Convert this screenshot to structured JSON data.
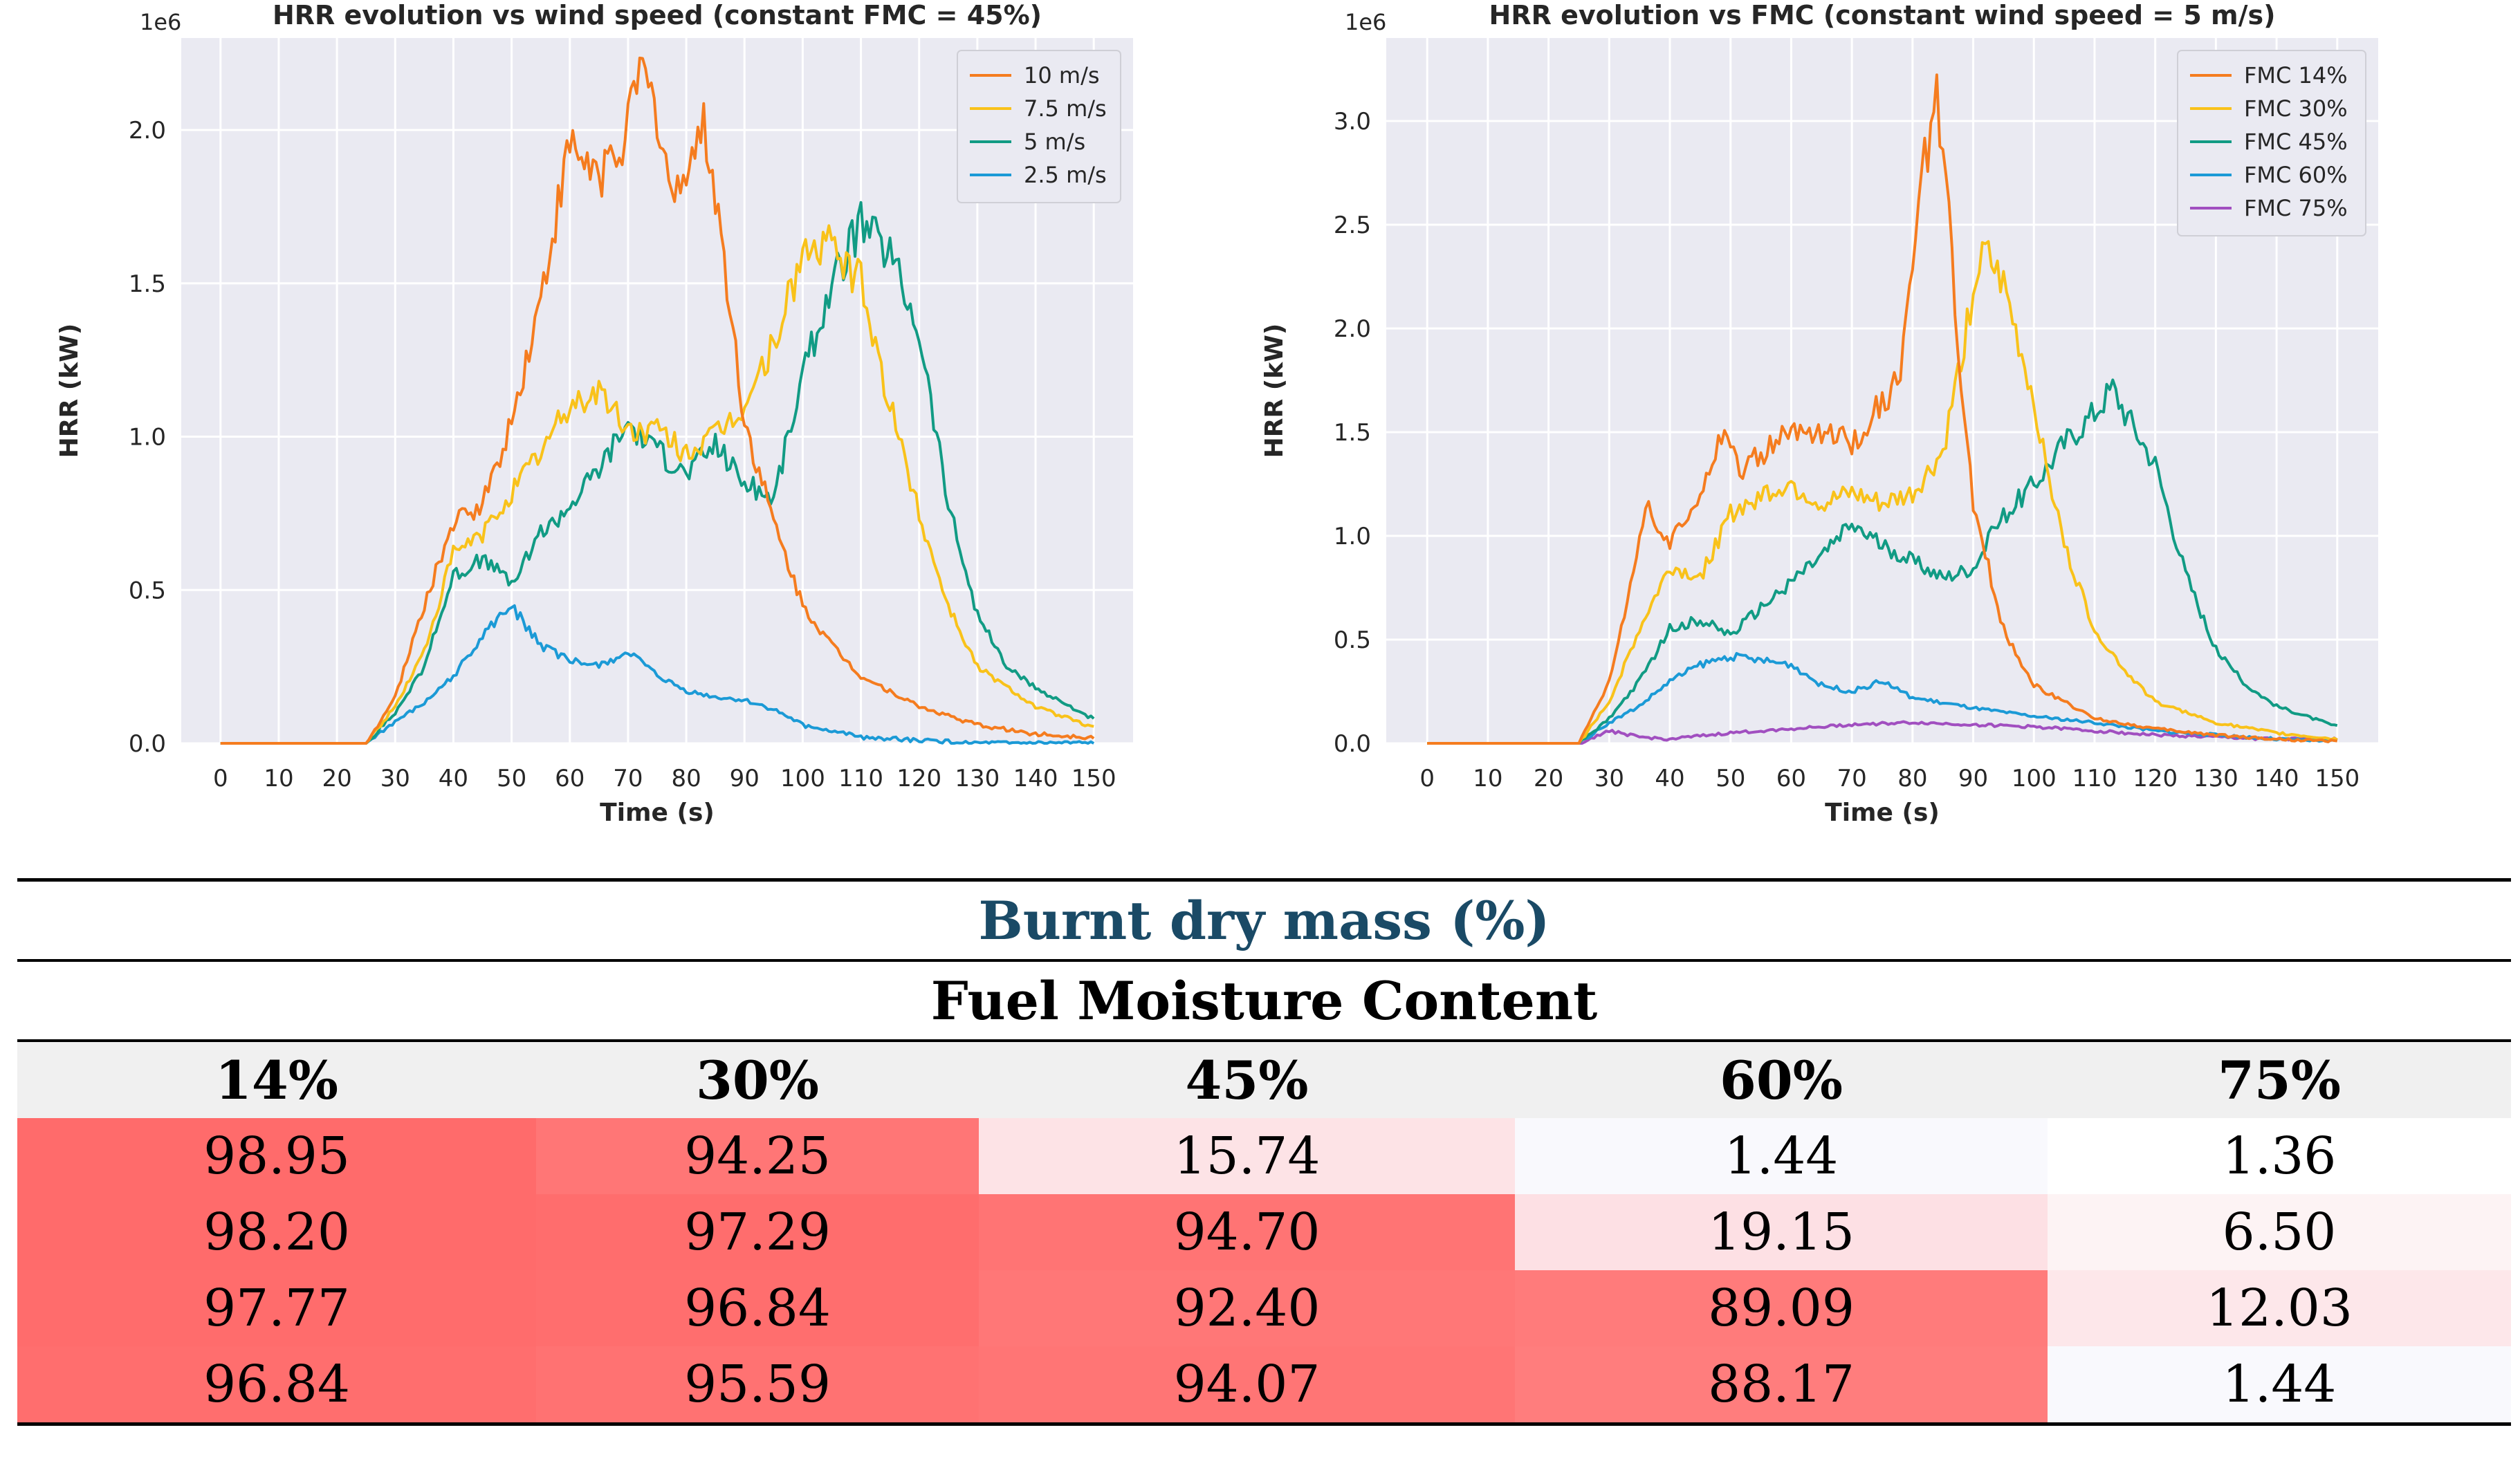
{
  "chart_data": [
    {
      "type": "line",
      "title": "HRR evolution vs wind speed (constant FMC = 45%)",
      "xlabel": "Time (s)",
      "ylabel": "HRR (kW)",
      "y_multiplier_label": "1e6",
      "xlim": [
        0,
        150
      ],
      "ylim": [
        0,
        2.3
      ],
      "xticks": [
        0,
        10,
        20,
        30,
        40,
        50,
        60,
        70,
        80,
        90,
        100,
        110,
        120,
        130,
        140,
        150
      ],
      "yticks": [
        0.0,
        0.5,
        1.0,
        1.5,
        2.0
      ],
      "ytick_labels": [
        "0.0",
        "0.5",
        "1.0",
        "1.5",
        "2.0"
      ],
      "legend_position": "top-right",
      "series": [
        {
          "name": "10 m/s",
          "color": "#f57c1f",
          "x": [
            0,
            25,
            30,
            35,
            40,
            45,
            50,
            55,
            58,
            60,
            65,
            70,
            72,
            75,
            78,
            80,
            83,
            85,
            88,
            90,
            95,
            100,
            105,
            110,
            120,
            130,
            140,
            150
          ],
          "values": [
            0,
            0,
            0.15,
            0.45,
            0.72,
            0.78,
            1.05,
            1.45,
            1.75,
            1.95,
            1.85,
            2.0,
            2.2,
            2.05,
            1.75,
            1.9,
            2.0,
            1.8,
            1.35,
            1.05,
            0.72,
            0.45,
            0.32,
            0.22,
            0.12,
            0.06,
            0.03,
            0.02
          ]
        },
        {
          "name": "7.5 m/s",
          "color": "#f9c21a",
          "x": [
            0,
            25,
            30,
            35,
            40,
            45,
            50,
            55,
            60,
            65,
            70,
            75,
            80,
            85,
            90,
            95,
            100,
            105,
            110,
            115,
            120,
            125,
            130,
            140,
            150
          ],
          "values": [
            0,
            0,
            0.12,
            0.3,
            0.62,
            0.68,
            0.82,
            0.95,
            1.1,
            1.15,
            1.02,
            1.02,
            0.95,
            1.0,
            1.1,
            1.3,
            1.6,
            1.62,
            1.5,
            1.1,
            0.75,
            0.45,
            0.25,
            0.12,
            0.05
          ]
        },
        {
          "name": "5 m/s",
          "color": "#119b84",
          "x": [
            0,
            25,
            30,
            35,
            40,
            45,
            50,
            55,
            60,
            65,
            70,
            75,
            80,
            85,
            90,
            95,
            100,
            105,
            110,
            115,
            120,
            125,
            130,
            135,
            140,
            150
          ],
          "values": [
            0,
            0,
            0.1,
            0.25,
            0.55,
            0.6,
            0.52,
            0.68,
            0.78,
            0.9,
            1.05,
            0.95,
            0.88,
            0.98,
            0.85,
            0.8,
            1.2,
            1.5,
            1.7,
            1.6,
            1.35,
            0.78,
            0.42,
            0.25,
            0.18,
            0.08
          ]
        },
        {
          "name": "2.5 m/s",
          "color": "#1b9ad6",
          "x": [
            0,
            25,
            30,
            35,
            40,
            45,
            50,
            55,
            60,
            65,
            70,
            75,
            80,
            85,
            90,
            95,
            100,
            110,
            120,
            130,
            140,
            150
          ],
          "values": [
            0,
            0,
            0.07,
            0.13,
            0.22,
            0.35,
            0.45,
            0.32,
            0.27,
            0.25,
            0.3,
            0.22,
            0.17,
            0.15,
            0.14,
            0.11,
            0.06,
            0.02,
            0.01,
            0,
            0,
            0
          ]
        }
      ]
    },
    {
      "type": "line",
      "title": "HRR evolution vs FMC (constant wind speed = 5 m/s)",
      "xlabel": "Time (s)",
      "ylabel": "HRR (kW)",
      "y_multiplier_label": "1e6",
      "xlim": [
        0,
        150
      ],
      "ylim": [
        0,
        3.4
      ],
      "xticks": [
        0,
        10,
        20,
        30,
        40,
        50,
        60,
        70,
        80,
        90,
        100,
        110,
        120,
        130,
        140,
        150
      ],
      "yticks": [
        0.0,
        0.5,
        1.0,
        1.5,
        2.0,
        2.5,
        3.0
      ],
      "ytick_labels": [
        "0.0",
        "0.5",
        "1.0",
        "1.5",
        "2.0",
        "2.5",
        "3.0"
      ],
      "legend_position": "top-right",
      "series": [
        {
          "name": "FMC 14%",
          "color": "#f57c1f",
          "x": [
            0,
            25,
            30,
            33,
            36,
            40,
            43,
            46,
            49,
            52,
            55,
            60,
            65,
            70,
            75,
            78,
            80,
            82,
            84,
            86,
            88,
            90,
            95,
            100,
            110,
            120,
            130,
            140,
            150
          ],
          "values": [
            0,
            0,
            0.3,
            0.7,
            1.15,
            0.95,
            1.1,
            1.3,
            1.52,
            1.3,
            1.4,
            1.5,
            1.5,
            1.45,
            1.65,
            1.75,
            2.3,
            2.8,
            3.1,
            2.5,
            1.7,
            1.15,
            0.55,
            0.28,
            0.12,
            0.07,
            0.04,
            0.02,
            0.01
          ]
        },
        {
          "name": "FMC 30%",
          "color": "#f9c21a",
          "x": [
            0,
            25,
            30,
            35,
            40,
            45,
            50,
            55,
            60,
            65,
            70,
            75,
            80,
            85,
            88,
            90,
            92,
            95,
            100,
            105,
            110,
            115,
            120,
            130,
            140,
            150
          ],
          "values": [
            0,
            0,
            0.2,
            0.55,
            0.85,
            0.8,
            1.1,
            1.2,
            1.25,
            1.15,
            1.2,
            1.15,
            1.2,
            1.4,
            1.85,
            2.2,
            2.35,
            2.2,
            1.65,
            0.95,
            0.55,
            0.35,
            0.2,
            0.1,
            0.05,
            0.02
          ]
        },
        {
          "name": "FMC 45%",
          "color": "#119b84",
          "x": [
            0,
            25,
            30,
            35,
            40,
            45,
            50,
            55,
            60,
            65,
            70,
            75,
            80,
            85,
            90,
            95,
            100,
            105,
            110,
            113,
            115,
            120,
            125,
            130,
            135,
            140,
            150
          ],
          "values": [
            0,
            0,
            0.12,
            0.3,
            0.55,
            0.6,
            0.52,
            0.65,
            0.78,
            0.9,
            1.05,
            0.95,
            0.88,
            0.8,
            0.85,
            1.1,
            1.25,
            1.45,
            1.6,
            1.72,
            1.6,
            1.35,
            0.82,
            0.45,
            0.28,
            0.18,
            0.08
          ]
        },
        {
          "name": "FMC 60%",
          "color": "#1b9ad6",
          "x": [
            0,
            25,
            30,
            35,
            40,
            45,
            50,
            55,
            60,
            65,
            70,
            75,
            80,
            90,
            100,
            110,
            120,
            130,
            140,
            150
          ],
          "values": [
            0,
            0,
            0.1,
            0.18,
            0.3,
            0.38,
            0.42,
            0.4,
            0.38,
            0.28,
            0.25,
            0.3,
            0.22,
            0.17,
            0.13,
            0.1,
            0.06,
            0.04,
            0.02,
            0.01
          ]
        },
        {
          "name": "FMC 75%",
          "color": "#a14fc0",
          "x": [
            0,
            25,
            30,
            35,
            40,
            50,
            60,
            70,
            80,
            90,
            100,
            110,
            120,
            130,
            140,
            150
          ],
          "values": [
            0,
            0,
            0.06,
            0.03,
            0.02,
            0.05,
            0.07,
            0.09,
            0.1,
            0.09,
            0.08,
            0.06,
            0.04,
            0.03,
            0.02,
            0.02
          ]
        }
      ]
    }
  ],
  "table": {
    "title": "Burnt dry mass (%)",
    "subtitle": "Fuel Moisture Content",
    "columns": [
      "14%",
      "30%",
      "45%",
      "60%",
      "75%"
    ],
    "rows": [
      {
        "values": [
          "98.95",
          "94.25",
          "15.74",
          "1.44",
          "1.36"
        ],
        "colors": [
          "#ff6b6b",
          "#ff7676",
          "#fde3e6",
          "#f9f9fd",
          "#ffffff"
        ]
      },
      {
        "values": [
          "98.20",
          "97.29",
          "94.70",
          "19.15",
          "6.50"
        ],
        "colors": [
          "#ff6b6b",
          "#ff6d6d",
          "#ff7474",
          "#fde0e4",
          "#fdf3f4"
        ]
      },
      {
        "values": [
          "97.77",
          "96.84",
          "92.40",
          "89.09",
          "12.03"
        ],
        "colors": [
          "#ff6c6c",
          "#ff6e6e",
          "#ff7777",
          "#ff7b7b",
          "#fde7ea"
        ]
      },
      {
        "values": [
          "96.84",
          "95.59",
          "94.07",
          "88.17",
          "1.44"
        ],
        "colors": [
          "#ff6e6e",
          "#ff7272",
          "#ff7575",
          "#ff7d7d",
          "#f9f9fd"
        ]
      }
    ]
  }
}
